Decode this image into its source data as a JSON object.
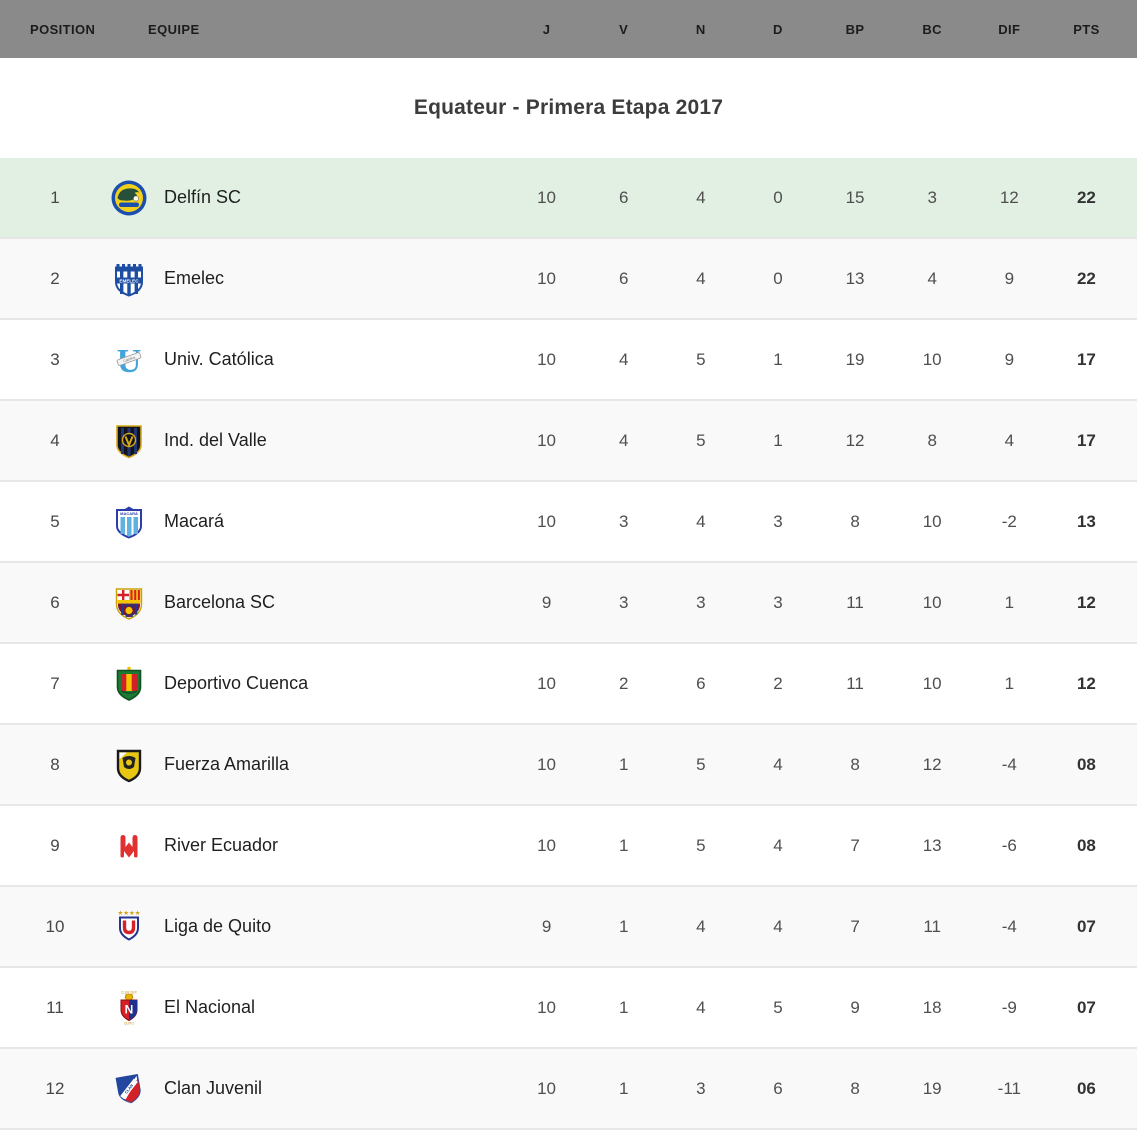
{
  "title": "Equateur - Primera Etapa 2017",
  "header": {
    "columns": [
      "POSITION",
      "EQUIPE",
      "J",
      "V",
      "N",
      "D",
      "BP",
      "BC",
      "DIF",
      "PTS"
    ]
  },
  "colors": {
    "header_bg": "#8a8a8a",
    "leader_row_bg": "#e2f0e4",
    "alt_row_bg": "#f9f9f9",
    "row_divider": "#e7e7e7"
  },
  "table": {
    "rows": [
      {
        "position": "1",
        "team": "Delfín SC",
        "logo": "delfin-sc-crest-icon",
        "j": "10",
        "v": "6",
        "n": "4",
        "d": "0",
        "bp": "15",
        "bc": "3",
        "dif": "12",
        "pts": "22",
        "highlight": true
      },
      {
        "position": "2",
        "team": "Emelec",
        "logo": "emelec-crest-icon",
        "j": "10",
        "v": "6",
        "n": "4",
        "d": "0",
        "bp": "13",
        "bc": "4",
        "dif": "9",
        "pts": "22",
        "highlight": false
      },
      {
        "position": "3",
        "team": "Univ. Católica",
        "logo": "univ-catolica-crest-icon",
        "j": "10",
        "v": "4",
        "n": "5",
        "d": "1",
        "bp": "19",
        "bc": "10",
        "dif": "9",
        "pts": "17",
        "highlight": false
      },
      {
        "position": "4",
        "team": "Ind. del Valle",
        "logo": "ind-del-valle-crest-icon",
        "j": "10",
        "v": "4",
        "n": "5",
        "d": "1",
        "bp": "12",
        "bc": "8",
        "dif": "4",
        "pts": "17",
        "highlight": false
      },
      {
        "position": "5",
        "team": "Macará",
        "logo": "macara-crest-icon",
        "j": "10",
        "v": "3",
        "n": "4",
        "d": "3",
        "bp": "8",
        "bc": "10",
        "dif": "-2",
        "pts": "13",
        "highlight": false
      },
      {
        "position": "6",
        "team": "Barcelona SC",
        "logo": "barcelona-sc-crest-icon",
        "j": "9",
        "v": "3",
        "n": "3",
        "d": "3",
        "bp": "11",
        "bc": "10",
        "dif": "1",
        "pts": "12",
        "highlight": false
      },
      {
        "position": "7",
        "team": "Deportivo Cuenca",
        "logo": "deportivo-cuenca-crest-icon",
        "j": "10",
        "v": "2",
        "n": "6",
        "d": "2",
        "bp": "11",
        "bc": "10",
        "dif": "1",
        "pts": "12",
        "highlight": false
      },
      {
        "position": "8",
        "team": "Fuerza Amarilla",
        "logo": "fuerza-amarilla-crest-icon",
        "j": "10",
        "v": "1",
        "n": "5",
        "d": "4",
        "bp": "8",
        "bc": "12",
        "dif": "-4",
        "pts": "08",
        "highlight": false
      },
      {
        "position": "9",
        "team": "River Ecuador",
        "logo": "river-ecuador-crest-icon",
        "j": "10",
        "v": "1",
        "n": "5",
        "d": "4",
        "bp": "7",
        "bc": "13",
        "dif": "-6",
        "pts": "08",
        "highlight": false
      },
      {
        "position": "10",
        "team": "Liga de Quito",
        "logo": "liga-de-quito-crest-icon",
        "j": "9",
        "v": "1",
        "n": "4",
        "d": "4",
        "bp": "7",
        "bc": "11",
        "dif": "-4",
        "pts": "07",
        "highlight": false
      },
      {
        "position": "11",
        "team": "El Nacional",
        "logo": "el-nacional-crest-icon",
        "j": "10",
        "v": "1",
        "n": "4",
        "d": "5",
        "bp": "9",
        "bc": "18",
        "dif": "-9",
        "pts": "07",
        "highlight": false
      },
      {
        "position": "12",
        "team": "Clan Juvenil",
        "logo": "clan-juvenil-crest-icon",
        "j": "10",
        "v": "1",
        "n": "3",
        "d": "6",
        "bp": "8",
        "bc": "19",
        "dif": "-11",
        "pts": "06",
        "highlight": false
      }
    ]
  }
}
